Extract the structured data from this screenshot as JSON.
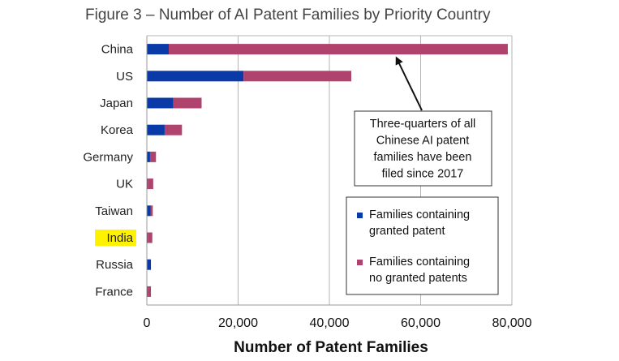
{
  "chart_data": {
    "type": "bar",
    "orientation": "horizontal",
    "stacked": true,
    "title": "Figure 3 – Number of AI Patent Families by Priority Country",
    "xlabel": "Number of Patent Families",
    "ylabel": "",
    "xlim": [
      0,
      80000
    ],
    "xticks": [
      0,
      20000,
      40000,
      60000,
      80000
    ],
    "xtick_labels": [
      "0",
      "20,000",
      "40,000",
      "60,000",
      "80,000"
    ],
    "grid": "vertical",
    "categories": [
      "China",
      "US",
      "Japan",
      "Korea",
      "Germany",
      "UK",
      "Taiwan",
      "India",
      "Russia",
      "France"
    ],
    "highlighted_category": "India",
    "highlight_color": "#fff200",
    "series": [
      {
        "name": "Families containing granted patent",
        "color": "#0a3aa8",
        "values": [
          4800,
          21200,
          5800,
          3900,
          700,
          200,
          800,
          200,
          900,
          200
        ]
      },
      {
        "name": "Families containing no granted patents",
        "color": "#b0436e",
        "values": [
          74300,
          23600,
          6200,
          3800,
          1300,
          1200,
          500,
          1000,
          0,
          700
        ]
      }
    ],
    "legend_position": "bottom-right",
    "annotation": {
      "lines": [
        "Three-quarters of all",
        "Chinese AI patent",
        "families have been",
        "filed since 2017"
      ],
      "points_to": "China"
    }
  }
}
